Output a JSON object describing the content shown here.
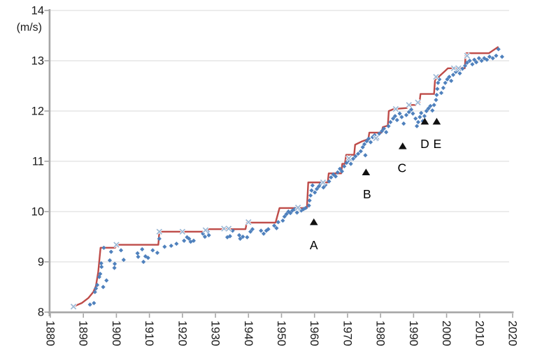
{
  "page": {
    "background": "#ffffff"
  },
  "chart_data": {
    "type": "scatter",
    "title": "",
    "xlabel": "",
    "ylabel": "(m/s)",
    "xlim": [
      1880,
      2020
    ],
    "ylim": [
      8,
      14
    ],
    "x_ticks": [
      1880,
      1890,
      1900,
      1910,
      1920,
      1930,
      1940,
      1950,
      1960,
      1970,
      1980,
      1990,
      2000,
      2010,
      2020
    ],
    "y_ticks": [
      8,
      9,
      10,
      11,
      12,
      13,
      14
    ],
    "grid": "horizontal",
    "legend_position": "none",
    "colors": {
      "scatter": "#4F81BD",
      "record_line": "#BE4B48",
      "record_marker": "#9CB8D5",
      "triangle": "#111111",
      "grid": "#D9D9D9",
      "axis": "#A6A6A6",
      "text": "#1A1A1A"
    },
    "series": [
      {
        "name": "measurements",
        "type": "scatter",
        "marker": "diamond",
        "color": "#4F81BD",
        "points": [
          [
            1892.0,
            8.15
          ],
          [
            1893.2,
            8.18
          ],
          [
            1893.5,
            8.4
          ],
          [
            1893.8,
            8.47
          ],
          [
            1894.2,
            8.54
          ],
          [
            1894.8,
            8.7
          ],
          [
            1895.1,
            8.76
          ],
          [
            1895.5,
            8.9
          ],
          [
            1895.4,
            8.97
          ],
          [
            1896.2,
            9.28
          ],
          [
            1896.0,
            8.5
          ],
          [
            1897.0,
            8.63
          ],
          [
            1898.0,
            9.03
          ],
          [
            1898.4,
            9.2
          ],
          [
            1899.4,
            8.88
          ],
          [
            1899.5,
            8.96
          ],
          [
            1901.4,
            9.23
          ],
          [
            1902.2,
            9.04
          ],
          [
            1906.4,
            9.17
          ],
          [
            1906.6,
            9.1
          ],
          [
            1907.8,
            9.25
          ],
          [
            1908.2,
            9.0
          ],
          [
            1908.8,
            9.11
          ],
          [
            1909.6,
            9.08
          ],
          [
            1911.0,
            9.23
          ],
          [
            1912.4,
            9.18
          ],
          [
            1913.0,
            9.46
          ],
          [
            1914.6,
            9.3
          ],
          [
            1916.6,
            9.32
          ],
          [
            1918.2,
            9.36
          ],
          [
            1920.5,
            9.42
          ],
          [
            1921.4,
            9.49
          ],
          [
            1922.0,
            9.46
          ],
          [
            1922.5,
            9.4
          ],
          [
            1923.4,
            9.42
          ],
          [
            1926.2,
            9.56
          ],
          [
            1926.8,
            9.5
          ],
          [
            1927.6,
            9.6
          ],
          [
            1928.0,
            9.53
          ],
          [
            1933.6,
            9.49
          ],
          [
            1934.4,
            9.51
          ],
          [
            1935.2,
            9.62
          ],
          [
            1937.2,
            9.53
          ],
          [
            1937.5,
            9.46
          ],
          [
            1938.3,
            9.5
          ],
          [
            1939.6,
            9.49
          ],
          [
            1940.6,
            9.6
          ],
          [
            1941.2,
            9.65
          ],
          [
            1943.8,
            9.62
          ],
          [
            1944.6,
            9.56
          ],
          [
            1945.4,
            9.62
          ],
          [
            1946.0,
            9.65
          ],
          [
            1947.8,
            9.72
          ],
          [
            1948.5,
            9.67
          ],
          [
            1949.0,
            9.79
          ],
          [
            1950.4,
            9.82
          ],
          [
            1950.9,
            9.9
          ],
          [
            1951.5,
            9.95
          ],
          [
            1952.1,
            10.0
          ],
          [
            1952.7,
            9.97
          ],
          [
            1953.3,
            10.02
          ],
          [
            1954.0,
            10.05
          ],
          [
            1954.7,
            9.98
          ],
          [
            1955.3,
            10.06
          ],
          [
            1956.0,
            10.02
          ],
          [
            1956.7,
            10.05
          ],
          [
            1957.3,
            10.07
          ],
          [
            1958.3,
            10.12
          ],
          [
            1958.5,
            10.22
          ],
          [
            1958.8,
            10.32
          ],
          [
            1959.1,
            10.42
          ],
          [
            1959.4,
            10.52
          ],
          [
            1960.1,
            10.38
          ],
          [
            1960.7,
            10.45
          ],
          [
            1961.3,
            10.5
          ],
          [
            1961.9,
            10.55
          ],
          [
            1962.7,
            10.48
          ],
          [
            1963.3,
            10.53
          ],
          [
            1964.4,
            10.6
          ],
          [
            1965.0,
            10.68
          ],
          [
            1965.7,
            10.74
          ],
          [
            1966.4,
            10.7
          ],
          [
            1967.0,
            10.78
          ],
          [
            1967.7,
            10.85
          ],
          [
            1968.3,
            10.8
          ],
          [
            1969.0,
            10.9
          ],
          [
            1969.7,
            10.97
          ],
          [
            1970.3,
            11.02
          ],
          [
            1971.0,
            10.95
          ],
          [
            1971.7,
            11.05
          ],
          [
            1972.4,
            11.1
          ],
          [
            1973.2,
            11.15
          ],
          [
            1974.0,
            11.2
          ],
          [
            1974.6,
            11.28
          ],
          [
            1975.1,
            11.34
          ],
          [
            1975.4,
            11.12
          ],
          [
            1975.8,
            11.4
          ],
          [
            1976.4,
            11.45
          ],
          [
            1977.0,
            11.38
          ],
          [
            1977.6,
            11.48
          ],
          [
            1978.2,
            11.52
          ],
          [
            1979.0,
            11.44
          ],
          [
            1979.6,
            11.55
          ],
          [
            1980.4,
            11.6
          ],
          [
            1981.0,
            11.65
          ],
          [
            1981.7,
            11.58
          ],
          [
            1982.4,
            11.7
          ],
          [
            1983.0,
            11.78
          ],
          [
            1983.8,
            11.85
          ],
          [
            1984.4,
            11.9
          ],
          [
            1985.0,
            11.82
          ],
          [
            1985.8,
            11.95
          ],
          [
            1986.4,
            11.88
          ],
          [
            1987.0,
            11.75
          ],
          [
            1987.8,
            11.92
          ],
          [
            1988.6,
            11.98
          ],
          [
            1989.3,
            12.03
          ],
          [
            1989.8,
            11.95
          ],
          [
            1990.6,
            11.85
          ],
          [
            1991.0,
            11.7
          ],
          [
            1991.4,
            11.78
          ],
          [
            1991.9,
            11.88
          ],
          [
            1992.3,
            11.96
          ],
          [
            1992.8,
            11.8
          ],
          [
            1993.3,
            11.9
          ],
          [
            1993.9,
            12.0
          ],
          [
            1994.5,
            12.05
          ],
          [
            1995.1,
            12.1
          ],
          [
            1995.7,
            12.01
          ],
          [
            1996.2,
            12.12
          ],
          [
            1996.8,
            12.22
          ],
          [
            1997.0,
            12.32
          ],
          [
            1997.2,
            12.44
          ],
          [
            1997.4,
            12.56
          ],
          [
            1997.8,
            12.63
          ],
          [
            1998.4,
            12.36
          ],
          [
            1999.0,
            12.46
          ],
          [
            1999.6,
            12.56
          ],
          [
            2000.2,
            12.63
          ],
          [
            2000.8,
            12.68
          ],
          [
            2001.4,
            12.6
          ],
          [
            2002.0,
            12.72
          ],
          [
            2002.8,
            12.78
          ],
          [
            2003.4,
            12.82
          ],
          [
            2004.0,
            12.75
          ],
          [
            2004.8,
            12.84
          ],
          [
            2005.6,
            12.9
          ],
          [
            2006.2,
            12.96
          ],
          [
            2007.0,
            13.0
          ],
          [
            2007.8,
            12.93
          ],
          [
            2008.4,
            13.02
          ],
          [
            2009.0,
            12.97
          ],
          [
            2009.8,
            13.05
          ],
          [
            2010.6,
            13.0
          ],
          [
            2011.4,
            13.05
          ],
          [
            2012.2,
            13.02
          ],
          [
            2013.0,
            13.08
          ],
          [
            2014.0,
            13.05
          ],
          [
            2015.0,
            13.1
          ],
          [
            2015.7,
            13.23
          ],
          [
            2016.8,
            13.08
          ]
        ]
      },
      {
        "name": "record-progression",
        "type": "line",
        "color": "#BE4B48",
        "points": [
          [
            1887,
            8.11
          ],
          [
            1889.5,
            8.18
          ],
          [
            1891.5,
            8.28
          ],
          [
            1893,
            8.4
          ],
          [
            1893.8,
            8.52
          ],
          [
            1894.5,
            8.8
          ],
          [
            1895.2,
            9.28
          ],
          [
            1899.6,
            9.28
          ],
          [
            1900,
            9.34
          ],
          [
            1912.7,
            9.34
          ],
          [
            1913,
            9.6
          ],
          [
            1926.5,
            9.6
          ],
          [
            1927.3,
            9.65
          ],
          [
            1939.1,
            9.65
          ],
          [
            1939.5,
            9.78
          ],
          [
            1948.2,
            9.78
          ],
          [
            1949.4,
            10.07
          ],
          [
            1957.7,
            10.07
          ],
          [
            1958.1,
            10.58
          ],
          [
            1964.0,
            10.58
          ],
          [
            1964.3,
            10.76
          ],
          [
            1968.1,
            10.76
          ],
          [
            1968.4,
            10.95
          ],
          [
            1969.2,
            10.95
          ],
          [
            1969.6,
            11.13
          ],
          [
            1972.0,
            11.13
          ],
          [
            1972.3,
            11.33
          ],
          [
            1974.5,
            11.4
          ],
          [
            1976.3,
            11.44
          ],
          [
            1976.6,
            11.57
          ],
          [
            1980.3,
            11.57
          ],
          [
            1980.7,
            11.68
          ],
          [
            1982.2,
            11.71
          ],
          [
            1982.5,
            12.0
          ],
          [
            1984.0,
            12.04
          ],
          [
            1988.0,
            12.06
          ],
          [
            1988.4,
            12.12
          ],
          [
            1990.7,
            12.12
          ],
          [
            1991.1,
            12.17
          ],
          [
            1991.8,
            12.17
          ],
          [
            1992.1,
            12.34
          ],
          [
            1996.2,
            12.34
          ],
          [
            1996.5,
            12.62
          ],
          [
            1997.6,
            12.68
          ],
          [
            1999.6,
            12.8
          ],
          [
            2000.4,
            12.85
          ],
          [
            2005.5,
            12.85
          ],
          [
            2005.8,
            13.15
          ],
          [
            2012.8,
            13.15
          ],
          [
            2015.5,
            13.27
          ]
        ]
      },
      {
        "name": "record-points",
        "type": "scatter",
        "marker": "x",
        "color": "#9CB8D5",
        "points": [
          [
            1887,
            8.11
          ],
          [
            1900,
            9.34
          ],
          [
            1913,
            9.6
          ],
          [
            1920,
            9.6
          ],
          [
            1927,
            9.63
          ],
          [
            1932.6,
            9.66
          ],
          [
            1934,
            9.66
          ],
          [
            1940,
            9.79
          ],
          [
            1955,
            10.08
          ],
          [
            1962.6,
            10.58
          ],
          [
            1970.4,
            11.06
          ],
          [
            1978.6,
            11.46
          ],
          [
            1984.6,
            12.04
          ],
          [
            1988.6,
            12.12
          ],
          [
            1991.3,
            12.17
          ],
          [
            1996.8,
            12.68
          ],
          [
            2002.2,
            12.85
          ],
          [
            2003.6,
            12.85
          ],
          [
            2006.2,
            13.1
          ]
        ]
      },
      {
        "name": "events",
        "type": "scatter",
        "marker": "triangle",
        "color": "#111111",
        "points": [
          [
            1959.8,
            9.79
          ],
          [
            1975.6,
            10.78
          ],
          [
            1986.7,
            11.3
          ],
          [
            1993.4,
            11.79
          ],
          [
            1997.0,
            11.79
          ]
        ],
        "labels": [
          "A",
          "B",
          "C",
          "D",
          "E"
        ],
        "label_points": [
          [
            1959.8,
            9.33
          ],
          [
            1975.9,
            10.35
          ],
          [
            1986.5,
            10.87
          ],
          [
            1993.4,
            11.35
          ],
          [
            1997.2,
            11.35
          ]
        ]
      }
    ]
  }
}
